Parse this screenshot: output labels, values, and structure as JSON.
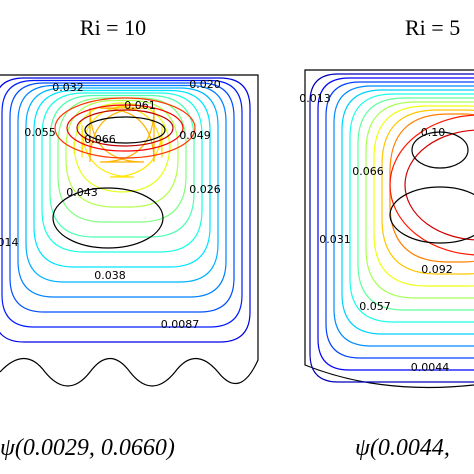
{
  "panels": [
    {
      "title": "Ri = 10",
      "caption": "ψ(0.0029, 0.0660)",
      "labels": [
        "0.032",
        "0.020",
        "0.061",
        "0.055",
        "0.066",
        "0.049",
        "0.043",
        "0.026",
        "014",
        "0.038",
        "0.0087"
      ]
    },
    {
      "title": "Ri = 5",
      "caption": "ψ(0.0044,",
      "labels": [
        "0.013",
        "0.10",
        "0.066",
        "0.031",
        "0.092",
        "0.057",
        "0.0044"
      ]
    }
  ]
}
